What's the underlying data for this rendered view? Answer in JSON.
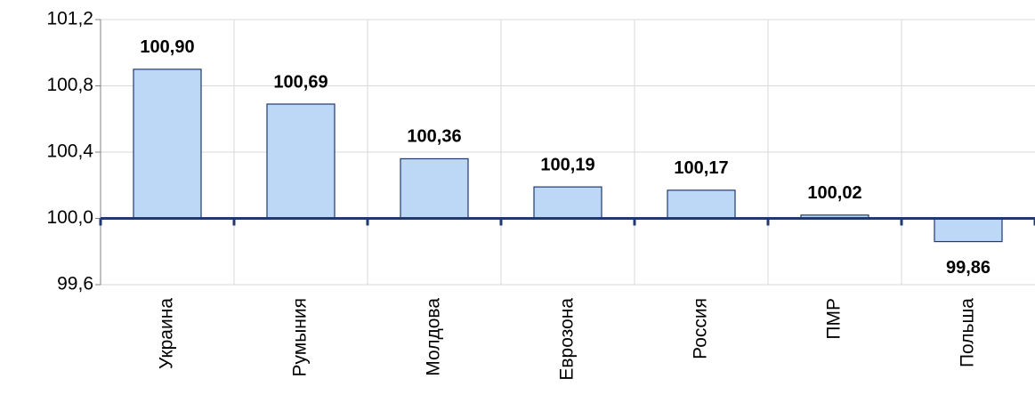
{
  "chart_data": {
    "type": "bar",
    "categories": [
      "Украина",
      "Румыния",
      "Молдова",
      "Еврозона",
      "Россия",
      "ПМР",
      "Польша"
    ],
    "values": [
      100.9,
      100.69,
      100.36,
      100.19,
      100.17,
      100.02,
      99.86
    ],
    "value_labels": [
      "100,90",
      "100,69",
      "100,36",
      "100,19",
      "100,17",
      "100,02",
      "99,86"
    ],
    "color": "#bdd7f7",
    "edge_color": "#1f3a6e",
    "baseline": 100,
    "ylim": [
      99.6,
      101.2
    ],
    "yticks": [
      {
        "value": 99.6,
        "label": "99,6"
      },
      {
        "value": 100.0,
        "label": "100,0"
      },
      {
        "value": 100.4,
        "label": "100,4"
      },
      {
        "value": 100.8,
        "label": "100,8"
      },
      {
        "value": 101.2,
        "label": "101,2"
      }
    ],
    "grid": true
  }
}
